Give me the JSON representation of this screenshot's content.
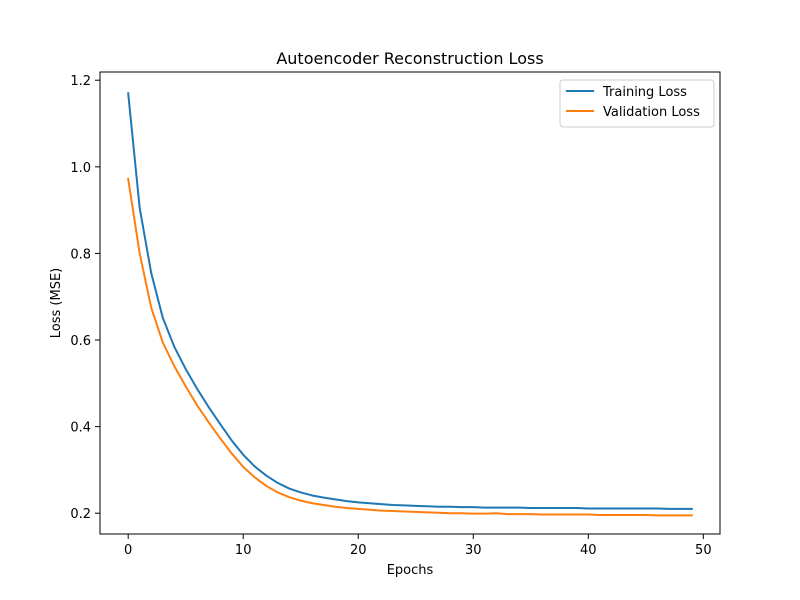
{
  "chart_data": {
    "type": "line",
    "title": "Autoencoder Reconstruction Loss",
    "xlabel": "Epochs",
    "ylabel": "Loss (MSE)",
    "xlim": [
      -2.45,
      51.45
    ],
    "ylim": [
      0.152,
      1.219
    ],
    "xticks": [
      0,
      10,
      20,
      30,
      40,
      50
    ],
    "yticks": [
      0.2,
      0.4,
      0.6,
      0.8,
      1.0,
      1.2
    ],
    "xtick_labels": [
      "0",
      "10",
      "20",
      "30",
      "40",
      "50"
    ],
    "ytick_labels": [
      "0.2",
      "0.4",
      "0.6",
      "0.8",
      "1.0",
      "1.2"
    ],
    "grid": false,
    "legend_position": "top-right",
    "x": [
      0,
      1,
      2,
      3,
      4,
      5,
      6,
      7,
      8,
      9,
      10,
      11,
      12,
      13,
      14,
      15,
      16,
      17,
      18,
      19,
      20,
      21,
      22,
      23,
      24,
      25,
      26,
      27,
      28,
      29,
      30,
      31,
      32,
      33,
      34,
      35,
      36,
      37,
      38,
      39,
      40,
      41,
      42,
      43,
      44,
      45,
      46,
      47,
      48,
      49
    ],
    "series": [
      {
        "name": "Training Loss",
        "color": "#1f77b4",
        "values": [
          1.17,
          0.905,
          0.755,
          0.652,
          0.585,
          0.533,
          0.487,
          0.445,
          0.406,
          0.368,
          0.335,
          0.308,
          0.287,
          0.27,
          0.257,
          0.248,
          0.241,
          0.236,
          0.232,
          0.228,
          0.225,
          0.223,
          0.221,
          0.219,
          0.218,
          0.217,
          0.216,
          0.215,
          0.215,
          0.214,
          0.214,
          0.213,
          0.213,
          0.213,
          0.213,
          0.212,
          0.212,
          0.212,
          0.212,
          0.212,
          0.211,
          0.211,
          0.211,
          0.211,
          0.211,
          0.211,
          0.211,
          0.21,
          0.21,
          0.21
        ]
      },
      {
        "name": "Validation Loss",
        "color": "#ff7f0e",
        "values": [
          0.972,
          0.8,
          0.675,
          0.595,
          0.54,
          0.493,
          0.449,
          0.41,
          0.373,
          0.338,
          0.307,
          0.283,
          0.263,
          0.248,
          0.237,
          0.229,
          0.223,
          0.219,
          0.215,
          0.212,
          0.21,
          0.208,
          0.206,
          0.205,
          0.204,
          0.203,
          0.202,
          0.201,
          0.2,
          0.2,
          0.199,
          0.199,
          0.2,
          0.198,
          0.198,
          0.198,
          0.197,
          0.197,
          0.197,
          0.197,
          0.197,
          0.196,
          0.196,
          0.196,
          0.196,
          0.196,
          0.195,
          0.195,
          0.195,
          0.195
        ]
      }
    ]
  }
}
